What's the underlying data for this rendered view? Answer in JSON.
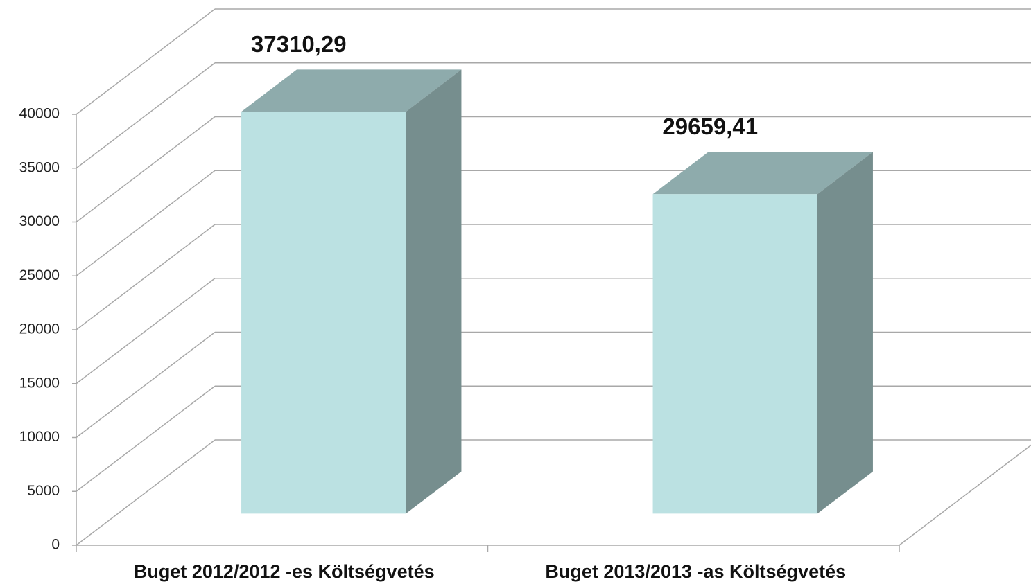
{
  "chart_data": {
    "type": "bar3d",
    "categories": [
      "Buget 2012/2012 -es Költségvetés",
      "Buget 2013/2013 -as Költségvetés"
    ],
    "values": [
      37310.29,
      29659.41
    ],
    "value_labels": [
      "37310,29",
      "29659,41"
    ],
    "color": "#bbe1e2",
    "ylim": [
      0,
      40000
    ],
    "yticks": [
      0,
      5000,
      10000,
      15000,
      20000,
      25000,
      30000,
      35000,
      40000
    ],
    "grid": true
  }
}
